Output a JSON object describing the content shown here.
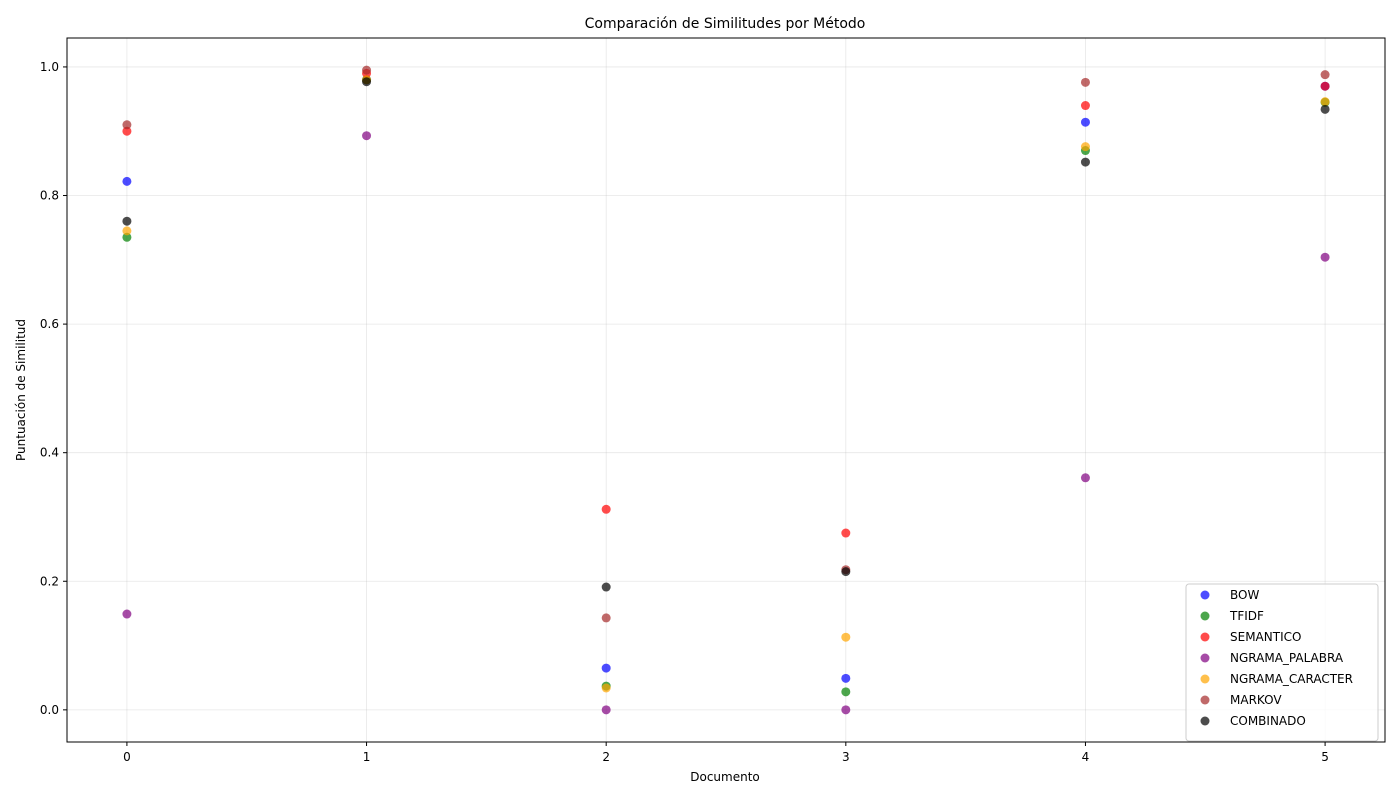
{
  "chart_data": {
    "type": "scatter",
    "title": "Comparación de Similitudes por Método",
    "xlabel": "Documento",
    "ylabel": "Puntuación de Similitud",
    "xlim": [
      -0.25,
      5.25
    ],
    "ylim": [
      -0.05,
      1.045
    ],
    "x_ticks": [
      0,
      1,
      2,
      3,
      4,
      5
    ],
    "y_ticks": [
      0.0,
      0.2,
      0.4,
      0.6,
      0.8,
      1.0
    ],
    "grid": true,
    "legend_position": "bottom-right",
    "x": [
      0,
      1,
      2,
      3,
      4,
      5
    ],
    "series": [
      {
        "name": "BOW",
        "color": "#0000ff",
        "values": [
          0.822,
          0.98,
          0.065,
          0.049,
          0.914,
          0.97
        ]
      },
      {
        "name": "TFIDF",
        "color": "#008000",
        "values": [
          0.735,
          0.98,
          0.037,
          0.028,
          0.87,
          0.945
        ]
      },
      {
        "name": "SEMANTICO",
        "color": "#ff0000",
        "values": [
          0.9,
          0.99,
          0.312,
          0.275,
          0.94,
          0.97
        ]
      },
      {
        "name": "NGRAMA_PALABRA",
        "color": "#800080",
        "values": [
          0.149,
          0.893,
          0.0,
          0.0,
          0.361,
          0.704
        ]
      },
      {
        "name": "NGRAMA_CARACTER",
        "color": "#ffa500",
        "values": [
          0.745,
          0.98,
          0.034,
          0.113,
          0.876,
          0.946
        ]
      },
      {
        "name": "MARKOV",
        "color": "#a52a2a",
        "values": [
          0.91,
          0.995,
          0.143,
          0.218,
          0.976,
          0.988
        ]
      },
      {
        "name": "COMBINADO",
        "color": "#000000",
        "values": [
          0.76,
          0.977,
          0.191,
          0.215,
          0.852,
          0.934
        ]
      }
    ]
  }
}
